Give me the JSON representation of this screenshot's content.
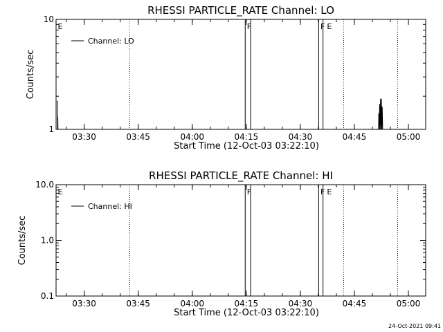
{
  "colors": {
    "background": "#ffffff",
    "foreground": "#000000"
  },
  "timestamp": "24-Oct-2021 09:41",
  "chart_data": [
    {
      "type": "line",
      "id": "lo",
      "title": "RHESSI PARTICLE_RATE Channel: LO",
      "xlabel": "Start Time (12-Oct-03 03:22:10)",
      "ylabel": "Counts/sec",
      "yscale": "log",
      "xlim": [
        3.37,
        5.08
      ],
      "ylim": [
        1,
        10
      ],
      "x_ticks": [
        {
          "t": 3.5,
          "label": "03:30"
        },
        {
          "t": 3.75,
          "label": "03:45"
        },
        {
          "t": 4.0,
          "label": "04:00"
        },
        {
          "t": 4.25,
          "label": "04:15"
        },
        {
          "t": 4.5,
          "label": "04:30"
        },
        {
          "t": 4.75,
          "label": "04:45"
        },
        {
          "t": 5.0,
          "label": "05:00"
        }
      ],
      "y_ticks": [
        {
          "v": 1,
          "label": "1"
        },
        {
          "v": 10,
          "label": "10"
        }
      ],
      "legend": {
        "label": "Channel: LO",
        "position": "top-left"
      },
      "dotted_lines": [
        3.71,
        4.7,
        4.95
      ],
      "flag_boxes": [
        [
          4.245,
          4.27
        ],
        [
          4.585,
          4.605
        ]
      ],
      "flags": [
        {
          "t": 3.375,
          "label": "E"
        },
        {
          "t": 4.25,
          "label": "F"
        },
        {
          "t": 4.59,
          "label": "F"
        },
        {
          "t": 4.62,
          "label": "E"
        }
      ],
      "series": [
        {
          "values": [
            [
              3.373,
              1.8
            ],
            [
              3.376,
              1.8
            ],
            [
              3.377,
              1
            ],
            [
              3.378,
              1.3
            ],
            [
              3.379,
              1
            ],
            [
              4.862,
              1
            ],
            [
              4.863,
              1.4
            ],
            [
              4.865,
              1
            ],
            [
              4.867,
              1.7
            ],
            [
              4.869,
              1
            ],
            [
              4.871,
              1.9
            ],
            [
              4.873,
              1
            ],
            [
              4.875,
              1.9
            ],
            [
              4.877,
              1
            ],
            [
              4.879,
              1.6
            ],
            [
              4.881,
              1
            ]
          ]
        }
      ]
    },
    {
      "type": "line",
      "id": "hi",
      "title": "RHESSI PARTICLE_RATE Channel: HI",
      "xlabel": "Start Time (12-Oct-03 03:22:10)",
      "ylabel": "Counts/sec",
      "yscale": "log",
      "xlim": [
        3.37,
        5.08
      ],
      "ylim": [
        0.1,
        10
      ],
      "x_ticks": [
        {
          "t": 3.5,
          "label": "03:30"
        },
        {
          "t": 3.75,
          "label": "03:45"
        },
        {
          "t": 4.0,
          "label": "04:00"
        },
        {
          "t": 4.25,
          "label": "04:15"
        },
        {
          "t": 4.5,
          "label": "04:30"
        },
        {
          "t": 4.75,
          "label": "04:45"
        },
        {
          "t": 5.0,
          "label": "05:00"
        }
      ],
      "y_ticks": [
        {
          "v": 0.1,
          "label": "0.1"
        },
        {
          "v": 1,
          "label": "1.0"
        },
        {
          "v": 10,
          "label": "10.0"
        }
      ],
      "legend": {
        "label": "Channel: HI",
        "position": "top-left"
      },
      "dotted_lines": [
        3.71,
        4.7,
        4.95
      ],
      "flag_boxes": [
        [
          4.245,
          4.27
        ],
        [
          4.585,
          4.605
        ]
      ],
      "flags": [
        {
          "t": 3.375,
          "label": "E"
        },
        {
          "t": 4.25,
          "label": "F"
        },
        {
          "t": 4.59,
          "label": "F"
        },
        {
          "t": 4.62,
          "label": "E"
        }
      ],
      "series": [
        {
          "values": []
        }
      ]
    }
  ]
}
